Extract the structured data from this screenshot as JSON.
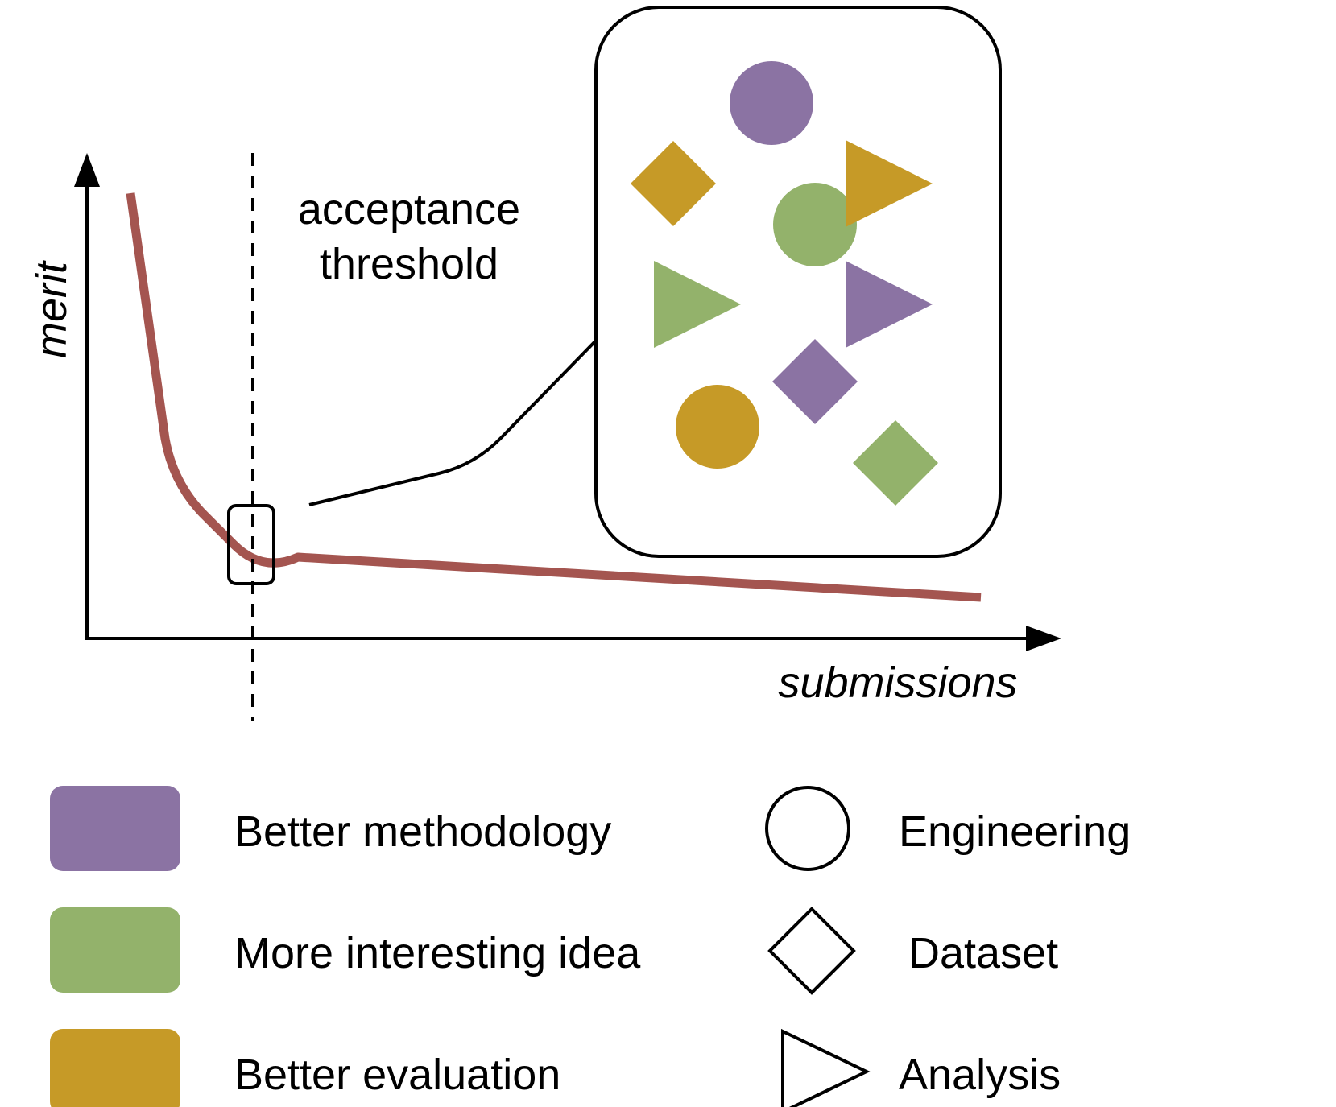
{
  "axes": {
    "y_label": "merit",
    "x_label": "submissions"
  },
  "threshold": {
    "label_line1": "acceptance",
    "label_line2": "threshold"
  },
  "colors": {
    "curve": "#a45550",
    "methodology": "#8b73a3",
    "idea": "#93b26b",
    "evaluation": "#c69a27",
    "stroke": "#000000"
  },
  "inset_shapes": [
    {
      "shape": "circle",
      "category": "methodology"
    },
    {
      "shape": "diamond",
      "category": "evaluation"
    },
    {
      "shape": "circle",
      "category": "idea"
    },
    {
      "shape": "triangle",
      "category": "evaluation"
    },
    {
      "shape": "triangle",
      "category": "idea"
    },
    {
      "shape": "triangle",
      "category": "methodology"
    },
    {
      "shape": "diamond",
      "category": "methodology"
    },
    {
      "shape": "circle",
      "category": "evaluation"
    },
    {
      "shape": "diamond",
      "category": "idea"
    }
  ],
  "legend": {
    "colors": [
      {
        "label": "Better methodology",
        "color": "#8b73a3"
      },
      {
        "label": "More interesting idea",
        "color": "#93b26b"
      },
      {
        "label": "Better evaluation",
        "color": "#c69a27"
      }
    ],
    "shapes": [
      {
        "label": "Engineering",
        "icon": "circle-icon"
      },
      {
        "label": "Dataset",
        "icon": "diamond-icon"
      },
      {
        "label": "Analysis",
        "icon": "triangle-icon"
      }
    ]
  }
}
